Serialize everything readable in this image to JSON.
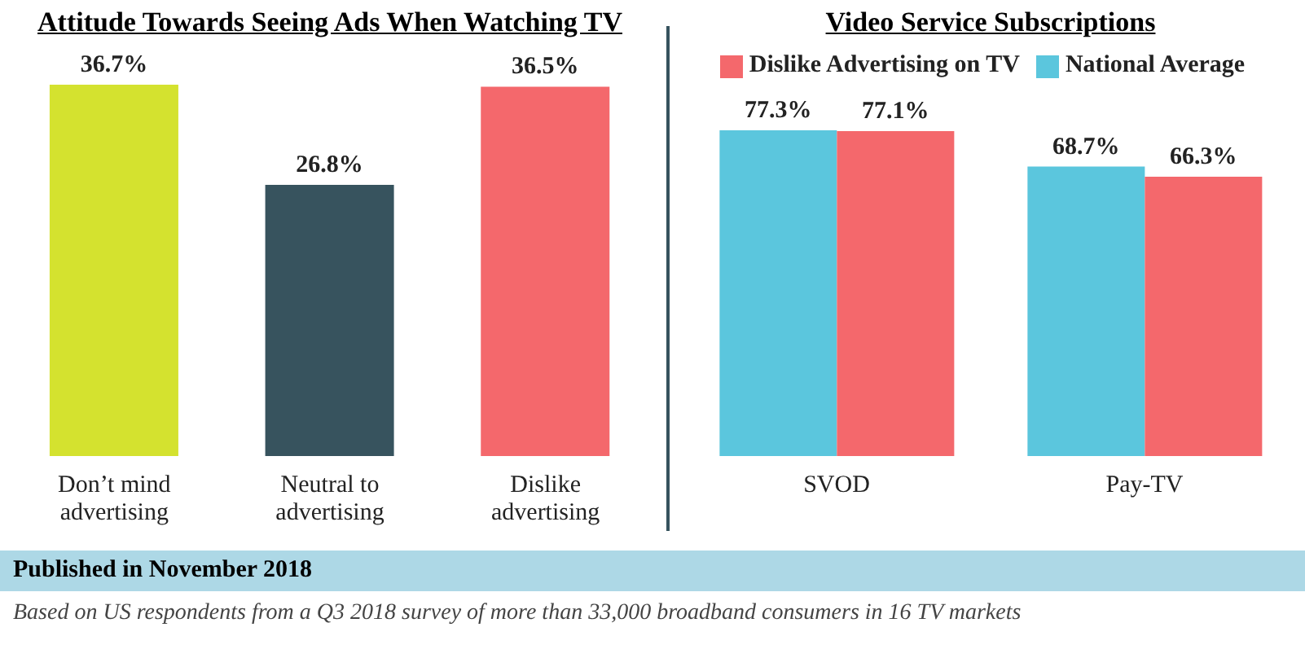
{
  "chart_data": [
    {
      "type": "bar",
      "title": "Attitude Towards Seeing Ads When Watching TV",
      "categories": [
        "Don’t mind advertising",
        "Neutral to advertising",
        "Dislike advertising"
      ],
      "values": [
        36.7,
        26.8,
        36.5
      ],
      "value_labels": [
        "36.7%",
        "26.8%",
        "36.5%"
      ],
      "colors": [
        "#d4e22f",
        "#37535e",
        "#f4686c"
      ],
      "grid": false,
      "legend": false,
      "annotations": [
        "Published in November 2018",
        "Based on US respondents from a Q3 2018 survey of more than 33,000 broadband consumers in 16 TV markets"
      ]
    },
    {
      "type": "bar",
      "title": "Video Service Subscriptions",
      "categories": [
        "SVOD",
        "Pay-TV"
      ],
      "series": [
        {
          "name": "National Average",
          "color": "#5bc6dd",
          "values": [
            77.3,
            68.7
          ],
          "value_labels": [
            "77.3%",
            "68.7%"
          ]
        },
        {
          "name": "Dislike Advertising on TV",
          "color": "#f4686c",
          "values": [
            77.1,
            66.3
          ],
          "value_labels": [
            "77.1%",
            "66.3%"
          ]
        }
      ],
      "grid": false,
      "legend": "top"
    }
  ]
}
